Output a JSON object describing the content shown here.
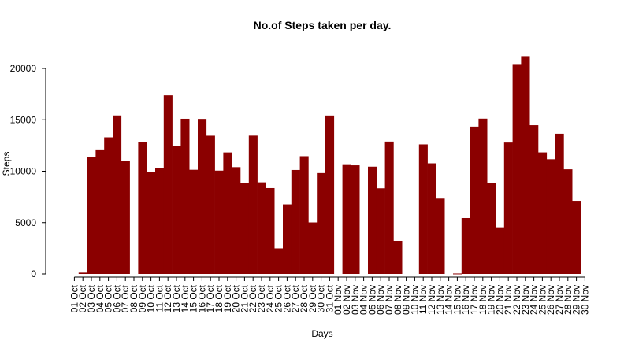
{
  "chart_data": {
    "type": "bar",
    "title": "No.of Steps taken per day.",
    "xlabel": "Days",
    "ylabel": "Steps",
    "ylim": [
      0,
      21500
    ],
    "yticks": [
      0,
      5000,
      10000,
      15000,
      20000
    ],
    "color": "#8B0000",
    "grid": false,
    "categories": [
      "01 Oct",
      "02 Oct",
      "03 Oct",
      "04 Oct",
      "05 Oct",
      "06 Oct",
      "07 Oct",
      "08 Oct",
      "09 Oct",
      "10 Oct",
      "11 Oct",
      "12 Oct",
      "13 Oct",
      "14 Oct",
      "15 Oct",
      "16 Oct",
      "17 Oct",
      "18 Oct",
      "19 Oct",
      "20 Oct",
      "21 Oct",
      "22 Oct",
      "23 Oct",
      "24 Oct",
      "25 Oct",
      "26 Oct",
      "27 Oct",
      "28 Oct",
      "29 Oct",
      "30 Oct",
      "31 Oct",
      "01 Nov",
      "02 Nov",
      "03 Nov",
      "04 Nov",
      "05 Nov",
      "06 Nov",
      "07 Nov",
      "08 Nov",
      "09 Nov",
      "10 Nov",
      "11 Nov",
      "12 Nov",
      "13 Nov",
      "14 Nov",
      "15 Nov",
      "16 Nov",
      "17 Nov",
      "18 Nov",
      "19 Nov",
      "20 Nov",
      "21 Nov",
      "22 Nov",
      "23 Nov",
      "24 Nov",
      "25 Nov",
      "26 Nov",
      "27 Nov",
      "28 Nov",
      "29 Nov",
      "30 Nov"
    ],
    "values": [
      0,
      126,
      11352,
      12116,
      13294,
      15420,
      11015,
      0,
      12811,
      9900,
      10304,
      17382,
      12426,
      15098,
      10139,
      15084,
      13452,
      10056,
      11829,
      10395,
      8821,
      13460,
      8918,
      8355,
      2492,
      6778,
      10119,
      11458,
      5018,
      9819,
      15414,
      0,
      10600,
      10571,
      0,
      10439,
      8334,
      12883,
      3219,
      0,
      0,
      12608,
      10765,
      7336,
      0,
      41,
      5441,
      14339,
      15110,
      8841,
      4472,
      12787,
      20427,
      21194,
      14478,
      11834,
      11162,
      13646,
      10183,
      7047,
      0
    ]
  }
}
